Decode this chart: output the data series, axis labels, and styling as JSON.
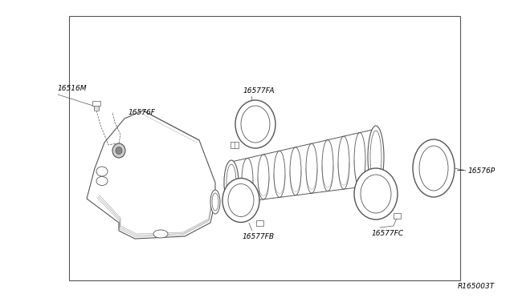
{
  "bg_color": "#ffffff",
  "border_color": "#555555",
  "line_color": "#555555",
  "label_color": "#000000",
  "fig_width": 6.4,
  "fig_height": 3.72,
  "dpi": 100,
  "border": [
    0.135,
    0.06,
    0.895,
    0.945
  ],
  "diagram_id": "R165003T",
  "label_fs": 6.5
}
